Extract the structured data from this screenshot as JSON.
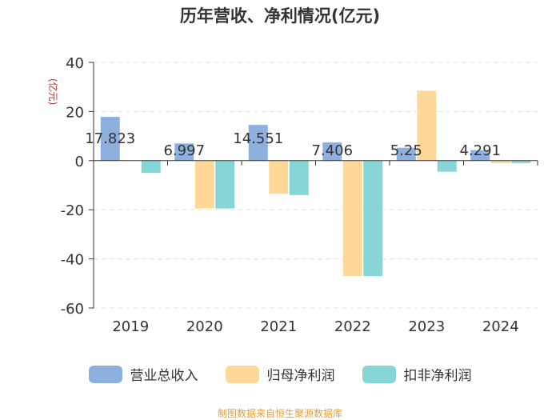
{
  "chart_data": {
    "type": "bar",
    "title": "历年营收、净利情况(亿元)",
    "ylabel": "(亿元)",
    "xlabel": "",
    "ylim": [
      -60,
      40
    ],
    "yticks": [
      40,
      20,
      0,
      -20,
      -40,
      -60
    ],
    "grid": true,
    "legend_position": "bottom",
    "categories": [
      "2019",
      "2020",
      "2021",
      "2022",
      "2023",
      "2024"
    ],
    "series": [
      {
        "name": "营业总收入",
        "color": "#8eb0de",
        "values": [
          17.823,
          6.997,
          14.551,
          7.406,
          5.25,
          4.291
        ],
        "labels": [
          "17.823",
          "6.997",
          "14.551",
          "7.406",
          "5.25",
          "4.291"
        ]
      },
      {
        "name": "归母净利润",
        "color": "#fdd898",
        "values": [
          0,
          -19.5,
          -13.5,
          -47.0,
          28.5,
          -1.0
        ]
      },
      {
        "name": "扣非净利润",
        "color": "#86d6d8",
        "values": [
          -5.0,
          -19.5,
          -14.0,
          -47.0,
          -4.5,
          -1.0
        ]
      }
    ]
  },
  "source_text": "制图数据来自恒生聚源数据库"
}
